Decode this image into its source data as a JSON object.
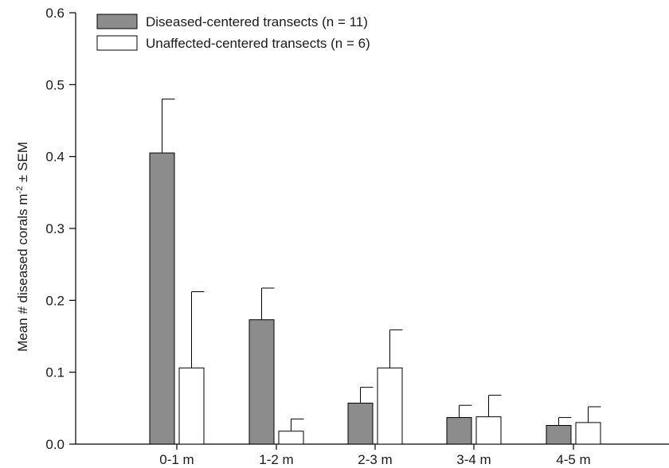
{
  "chart_data": {
    "type": "bar",
    "title": "",
    "xlabel": "",
    "ylabel": "Mean # diseased corals m",
    "ylabel_superscript": "-2",
    "ylabel_suffix": " ± SEM",
    "ylim": [
      0,
      0.6
    ],
    "yticks": [
      "0.0",
      "0.1",
      "0.2",
      "0.3",
      "0.4",
      "0.5",
      "0.6"
    ],
    "categories": [
      "0-1 m",
      "1-2 m",
      "2-3 m",
      "3-4 m",
      "4-5 m"
    ],
    "legend_position": "top-left",
    "grid": false,
    "series": [
      {
        "name": "Diseased-centered transects (n = 11)",
        "color": "#8c8c8c",
        "values": [
          0.405,
          0.173,
          0.057,
          0.037,
          0.026
        ],
        "sem": [
          0.075,
          0.044,
          0.022,
          0.017,
          0.011
        ]
      },
      {
        "name": "Unaffected-centered transects (n = 6)",
        "color": "#ffffff",
        "values": [
          0.106,
          0.018,
          0.106,
          0.038,
          0.03
        ],
        "sem": [
          0.106,
          0.017,
          0.053,
          0.03,
          0.022
        ]
      }
    ]
  }
}
